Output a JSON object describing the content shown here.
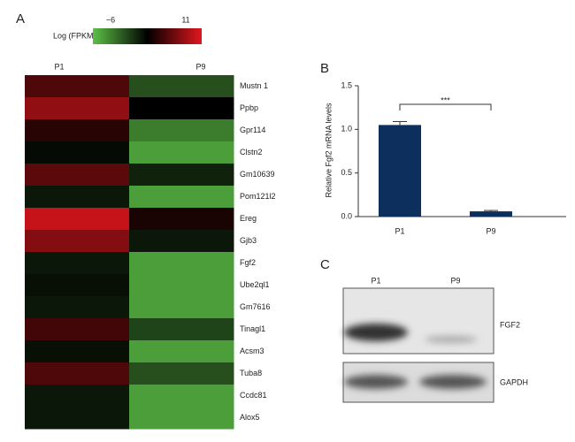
{
  "chart_data": [
    {
      "type": "heatmap",
      "panel": "A",
      "colorbar_label": "Log (FPKM)",
      "clim": [
        -6,
        11
      ],
      "cticks": [
        {
          "value": -6,
          "label": "−6"
        },
        11
      ],
      "colormap": [
        "#5cc046",
        "#000000",
        "#e0161d"
      ],
      "categories": [
        "Mustn 1",
        "Ppbp",
        "Gpr114",
        "Clstn2",
        "Gm10639",
        "Pom121l2",
        "Ereg",
        "Gjb3",
        "Fgf2",
        "Ube2ql1",
        "Gm7616",
        "Tinagl1",
        "Acsm3",
        "Tuba8",
        "Ccdc81",
        "Alox5"
      ],
      "series": [
        {
          "name": "P1",
          "values": [
            5.5,
            8,
            4,
            2,
            6,
            1.5,
            10,
            7.5,
            1.5,
            1.8,
            1.5,
            5,
            1.8,
            5.5,
            1.5,
            1.5
          ]
        },
        {
          "name": "P9",
          "values": [
            -1,
            2.5,
            -3,
            -4.5,
            1,
            -4.5,
            3.5,
            1.5,
            -4.5,
            -4.5,
            -4.5,
            -0.5,
            -4.5,
            -1,
            -4.5,
            -4.5
          ]
        }
      ]
    },
    {
      "type": "bar",
      "panel": "B",
      "y_label": "Relative Fgf2 mRNA levels",
      "categories": [
        "P1",
        "P9"
      ],
      "values": [
        1.05,
        0.06
      ],
      "errors": [
        0.04,
        0.01
      ],
      "color": "#0d2f5e",
      "ylim": [
        0,
        1.5
      ],
      "yticks": [
        {
          "value": 0,
          "label": "0.0"
        },
        {
          "value": 0.5,
          "label": "0.5"
        },
        {
          "value": 1,
          "label": "1.0"
        },
        {
          "value": 1.5,
          "label": "1.5"
        }
      ],
      "annotation": "***"
    },
    {
      "type": "blot",
      "panel": "C",
      "lanes": [
        "P1",
        "P9"
      ],
      "bands": [
        "FGF2",
        "GAPDH"
      ]
    }
  ]
}
